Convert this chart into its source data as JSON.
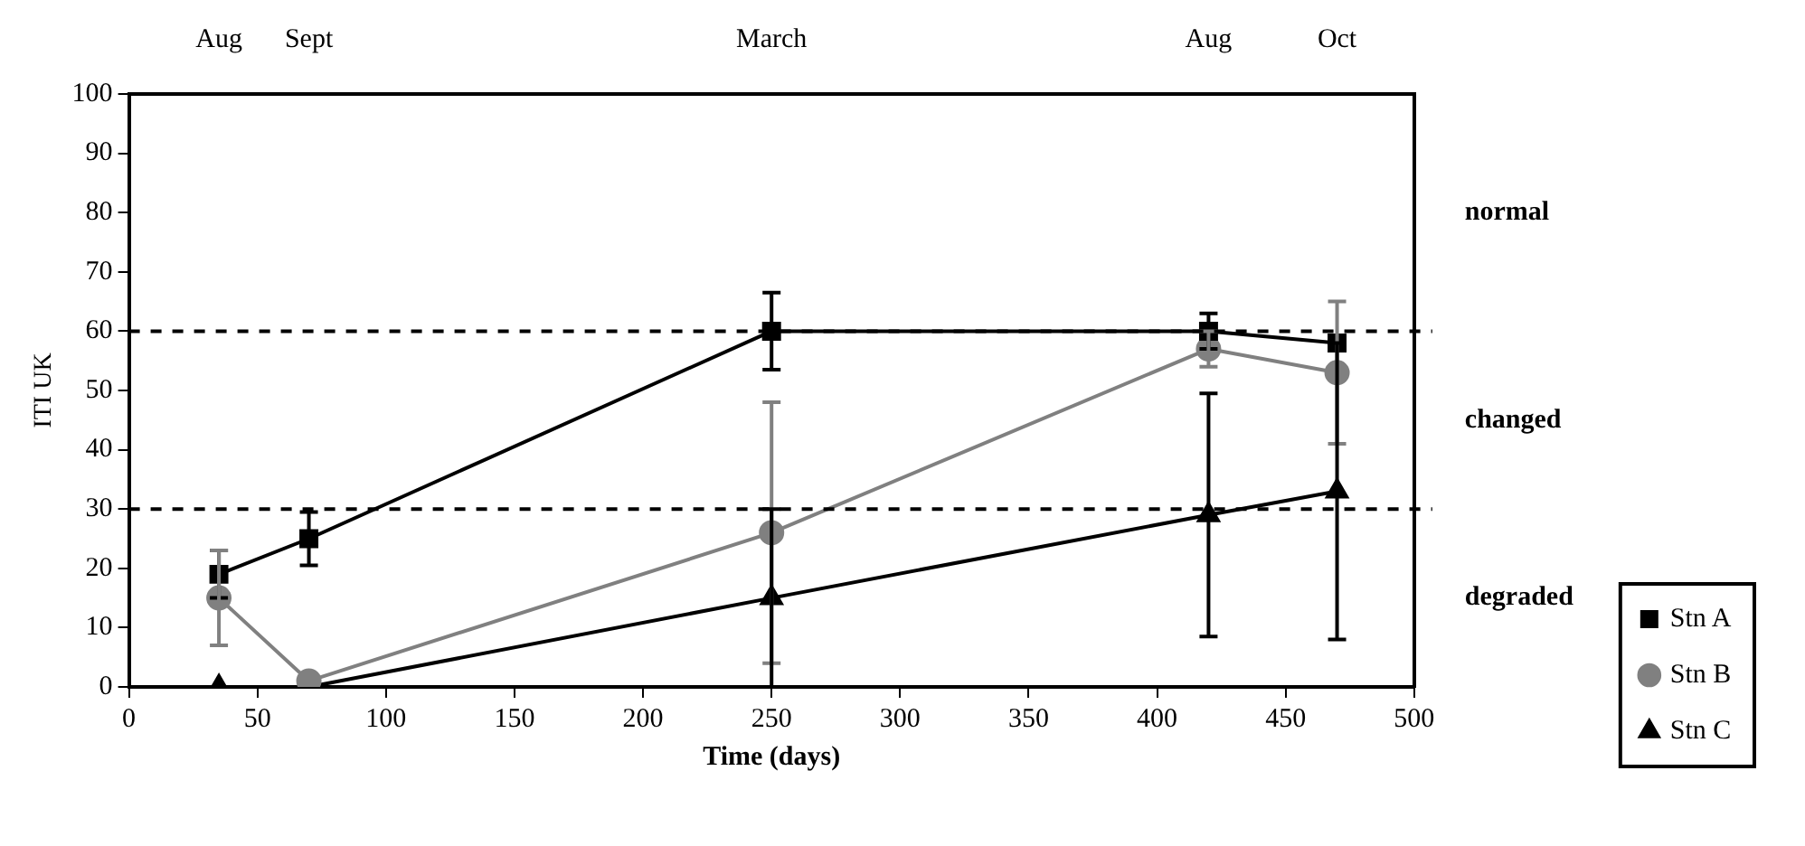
{
  "chart_data": {
    "type": "line",
    "xlabel": "Time (days)",
    "ylabel": "ITI UK",
    "xlim": [
      0,
      500
    ],
    "xticks": [
      0,
      50,
      100,
      150,
      200,
      250,
      300,
      350,
      400,
      450,
      500
    ],
    "ylim": [
      0,
      100
    ],
    "yticks": [
      0,
      10,
      20,
      30,
      40,
      50,
      60,
      70,
      80,
      90,
      100
    ],
    "x": [
      35,
      70,
      250,
      420,
      470
    ],
    "series": [
      {
        "name": "Stn A",
        "color": "#000000",
        "marker": "square",
        "values": [
          19,
          25,
          60,
          60,
          58
        ],
        "errors": [
          4,
          4.5,
          6.5,
          3,
          null
        ]
      },
      {
        "name": "Stn B",
        "color": "#808080",
        "marker": "circle",
        "values": [
          15,
          1,
          26,
          57,
          53
        ],
        "errors": [
          8,
          null,
          22,
          3,
          12
        ]
      },
      {
        "name": "Stn C",
        "color": "#000000",
        "marker": "triangle",
        "values": [
          0,
          0,
          15,
          29,
          33
        ],
        "errors": [
          null,
          null,
          15,
          20.5,
          25
        ]
      }
    ],
    "ref_lines": [
      {
        "axis": "y",
        "value": 60,
        "line_style": "dashed"
      },
      {
        "axis": "y",
        "value": 30,
        "line_style": "dashed"
      }
    ],
    "annotations": [
      "normal",
      "changed",
      "degraded",
      "Aug",
      "Sept",
      "March",
      "Aug",
      "Oct"
    ],
    "legend": "bottom right",
    "grid": false,
    "line_style": "solid"
  }
}
